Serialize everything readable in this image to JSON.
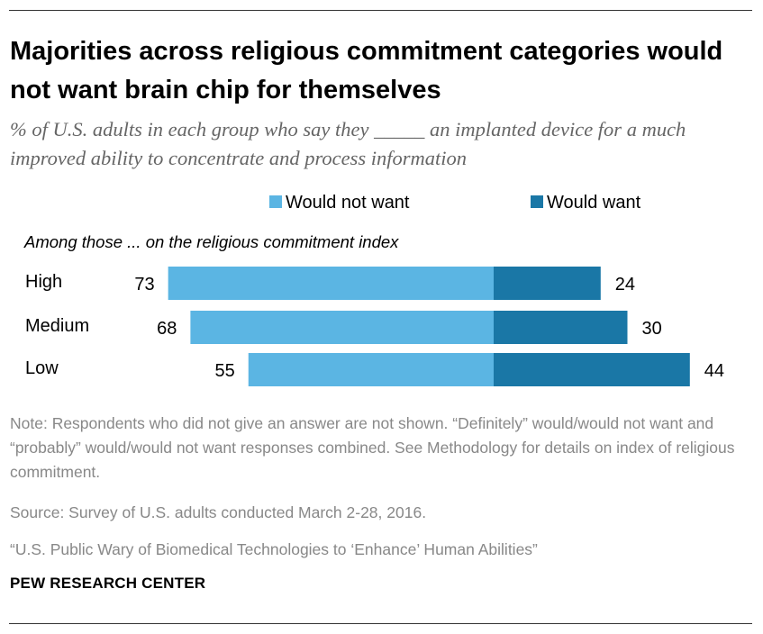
{
  "title": "Majorities across religious commitment categories would not want brain chip for themselves",
  "subtitle": "% of U.S. adults in each group who say they _____ an implanted device for a much improved ability to concentrate and process information",
  "chart_data": {
    "type": "bar",
    "orientation": "horizontal-diverging",
    "group_label": "Among those ... on the religious commitment index",
    "categories": [
      "High",
      "Medium",
      "Low"
    ],
    "series": [
      {
        "name": "Would not want",
        "values": [
          73,
          68,
          55
        ],
        "color": "#5bb5e3"
      },
      {
        "name": "Would want",
        "values": [
          24,
          30,
          44
        ],
        "color": "#1a77a6"
      }
    ],
    "legend_position": "top",
    "grid": false,
    "unit": "%"
  },
  "footer": {
    "note": "Note: Respondents who did not give an answer are not shown. “Definitely” would/would not want and “probably” would/would not want responses combined. See Methodology for details on index of religious commitment.",
    "source": "Source: Survey of U.S. adults conducted March 2-28, 2016.",
    "report": "“U.S. Public Wary of Biomedical Technologies to ‘Enhance’ Human Abilities”",
    "brand": "PEW RESEARCH CENTER"
  }
}
